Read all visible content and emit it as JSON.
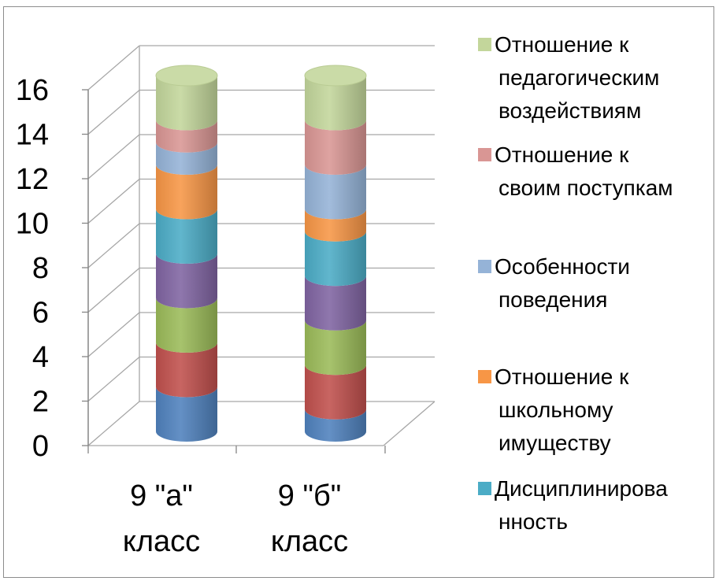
{
  "chart_data": {
    "type": "bar",
    "stacked": true,
    "style": "3d-cylinder",
    "categories": [
      [
        "9 \"а\"",
        "класс"
      ],
      [
        "9 \"б\"",
        "класс"
      ]
    ],
    "yticks": [
      "0",
      "2",
      "4",
      "6",
      "8",
      "10",
      "12",
      "14",
      "16"
    ],
    "ylim": [
      0,
      16
    ],
    "grid": true,
    "legend_position": "right",
    "series": [
      {
        "name": "",
        "color": "#4f81bd",
        "values": [
          2,
          1
        ]
      },
      {
        "name": "",
        "color": "#c0504d",
        "values": [
          2,
          2
        ]
      },
      {
        "name": "",
        "color": "#9bbb59",
        "values": [
          2,
          2
        ]
      },
      {
        "name": "",
        "color": "#8064a2",
        "values": [
          2,
          2
        ]
      },
      {
        "name": "Дисциплинированность",
        "color": "#4bacc6",
        "values": [
          2,
          2
        ]
      },
      {
        "name": "Отношение к школьному имуществу",
        "color": "#f79646",
        "values": [
          2,
          1
        ]
      },
      {
        "name": "Особенности поведения",
        "color": "#95b3d7",
        "values": [
          1,
          2
        ]
      },
      {
        "name": "Отношение к своим поступкам",
        "color": "#d99694",
        "values": [
          1,
          2
        ]
      },
      {
        "name": "Отношение к педагогическим воздействиям",
        "color": "#c3d69b",
        "values": [
          2,
          2
        ]
      }
    ],
    "legend": [
      {
        "lines": [
          "Отношение к",
          "педагогическим",
          "воздействиям"
        ],
        "color": "#c3d69b"
      },
      {
        "lines": [
          "Отношение к",
          "своим поступкам"
        ],
        "color": "#d99694"
      },
      {
        "lines": [
          "Особенности",
          "поведения"
        ],
        "color": "#95b3d7"
      },
      {
        "lines": [
          "Отношение к",
          "школьному",
          "имуществу"
        ],
        "color": "#f79646"
      },
      {
        "lines": [
          "Дисциплинирова",
          "нность"
        ],
        "color": "#4bacc6"
      }
    ]
  }
}
